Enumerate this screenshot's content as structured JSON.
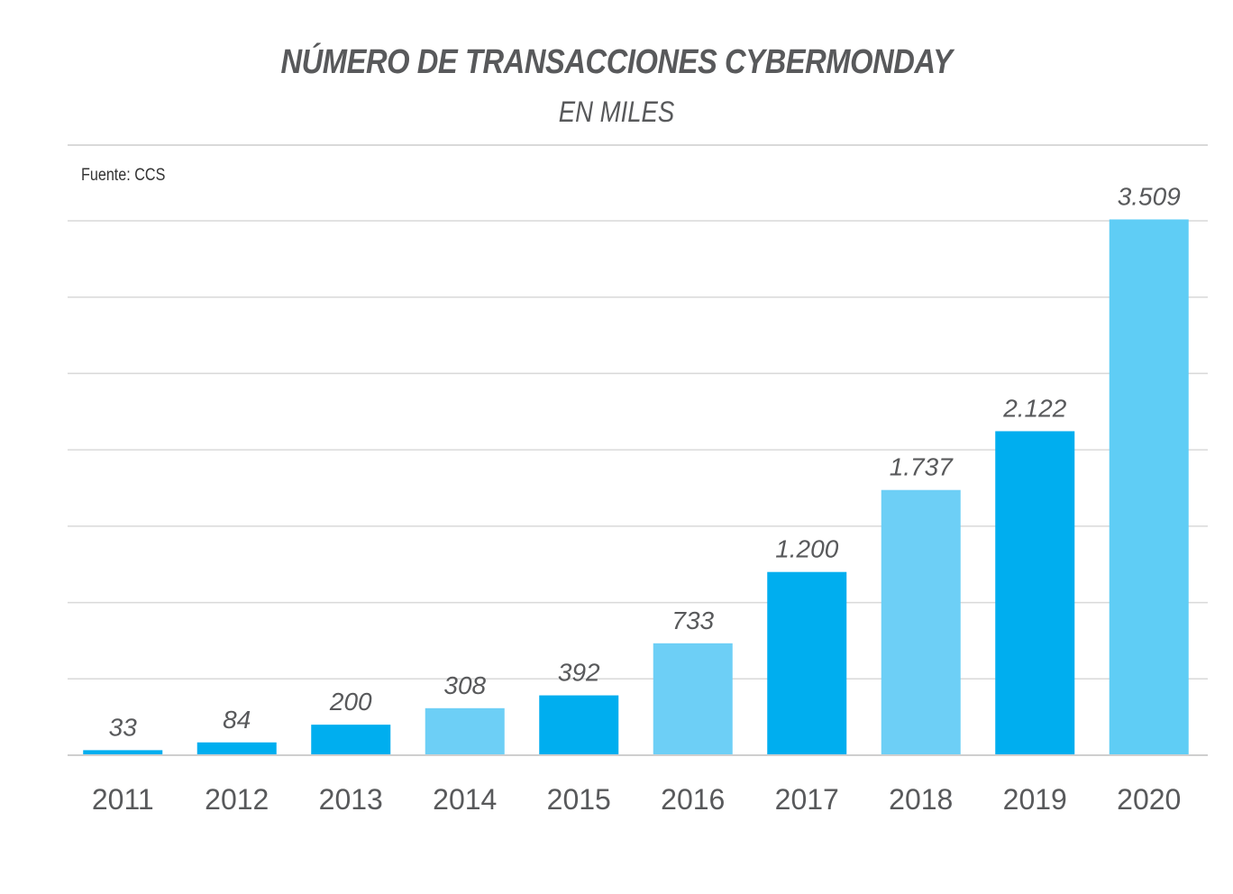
{
  "chart_data": {
    "type": "bar",
    "title": "NÚMERO DE TRANSACCIONES CYBERMONDAY",
    "subtitle": "EN MILES",
    "source": "Fuente: CCS",
    "categories": [
      "2011",
      "2012",
      "2013",
      "2014",
      "2015",
      "2016",
      "2017",
      "2018",
      "2019",
      "2020"
    ],
    "values": [
      33,
      84,
      200,
      308,
      392,
      733,
      1200,
      1737,
      2122,
      3509
    ],
    "value_labels": [
      "33",
      "84",
      "200",
      "308",
      "392",
      "733",
      "1.200",
      "1.737",
      "2.122",
      "3.509"
    ],
    "ylim": [
      0,
      3500
    ],
    "grid": true,
    "colors": [
      "#00aeef",
      "#00aeef",
      "#00aeef",
      "#6dcff6",
      "#00aeef",
      "#6dcff6",
      "#00aeef",
      "#6dcff6",
      "#00aeef",
      "#5fcdf5"
    ],
    "gridline_color": "#d9d9d9"
  }
}
